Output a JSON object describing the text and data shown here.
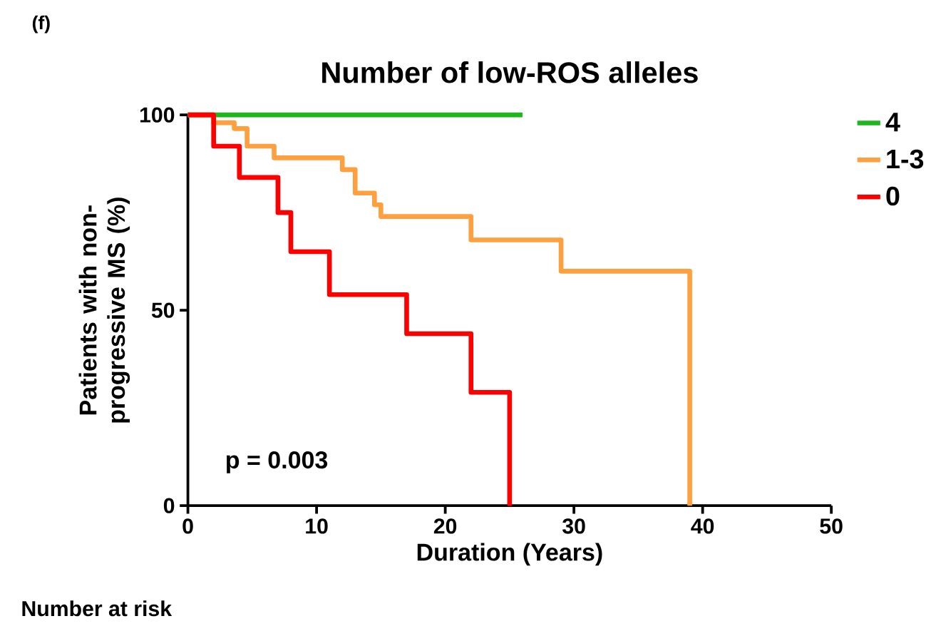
{
  "chart_data": {
    "type": "step",
    "title": "Number of low-ROS alleles",
    "xlabel": "Duration (Years)",
    "ylabel": "Patients with non-progressive MS  (%)",
    "annotations": [
      "(f)",
      "p = 0.003",
      "Number at risk"
    ],
    "xlim": [
      0,
      50
    ],
    "xticks": [
      0,
      10,
      20,
      30,
      40,
      50
    ],
    "ylim": [
      0,
      100
    ],
    "yticks": [
      0,
      50,
      100
    ],
    "legend": "top right",
    "grid": false,
    "series": [
      {
        "name": "4",
        "color": "#1fb51f",
        "x": [
          0,
          26
        ],
        "values": [
          100,
          100
        ]
      },
      {
        "name": "1-3",
        "color": "#ffa040",
        "x": [
          0,
          2,
          3.6,
          4.6,
          6.7,
          12,
          13,
          14.5,
          15,
          22,
          29,
          39
        ],
        "values": [
          100,
          98,
          96.5,
          92,
          89,
          86,
          80,
          77,
          74,
          68,
          60,
          0
        ]
      },
      {
        "name": "0",
        "color": "#ff0000",
        "x": [
          0,
          2,
          4,
          7,
          8,
          11,
          17,
          22,
          25
        ],
        "values": [
          100,
          92,
          84,
          75,
          65,
          54,
          44,
          29,
          0
        ]
      }
    ]
  }
}
